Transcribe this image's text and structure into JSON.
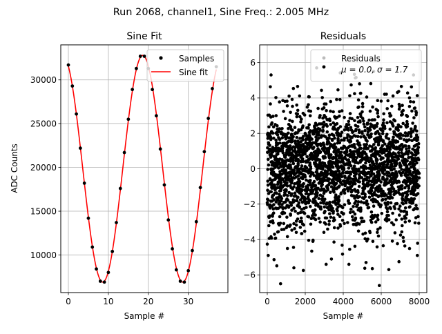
{
  "suptitle": "Run 2068, channel1, Sine Freq.: 2.005 MHz",
  "chart_data": [
    {
      "type": "scatter+line",
      "title": "Sine Fit",
      "xlabel": "Sample #",
      "ylabel": "ADC Counts",
      "xlim": [
        -1.9,
        39.9
      ],
      "ylim": [
        5700,
        34000
      ],
      "xticks": [
        0,
        10,
        20,
        30
      ],
      "yticks": [
        10000,
        15000,
        20000,
        25000,
        30000
      ],
      "grid": true,
      "legend": "upper right",
      "legend_entries": [
        "Samples",
        "Sine fit"
      ],
      "series": [
        {
          "name": "Samples",
          "marker": "dot",
          "color": "#000000",
          "x": [
            0,
            1,
            2,
            3,
            4,
            5,
            6,
            7,
            8,
            9,
            10,
            11,
            12,
            13,
            14,
            15,
            16,
            17,
            18,
            19,
            20,
            21,
            22,
            23,
            24,
            25,
            26,
            27,
            28,
            29,
            30,
            31,
            32,
            33,
            34,
            35,
            36,
            37
          ],
          "y": [
            31700,
            29300,
            26100,
            22200,
            18200,
            14200,
            10900,
            8400,
            7000,
            6900,
            8000,
            10400,
            13700,
            17600,
            21700,
            25500,
            28900,
            31300,
            32700,
            32700,
            31300,
            28900,
            25900,
            22100,
            18000,
            14000,
            10700,
            8300,
            7000,
            6900,
            8200,
            10500,
            13800,
            17700,
            21800,
            25600,
            29000,
            31500
          ]
        },
        {
          "name": "Sine fit",
          "marker": "line",
          "color": "#ff0000",
          "model": {
            "offset": 19850,
            "amplitude": 12950,
            "period": 20.0,
            "phase_x0": 18.6,
            "x_start": 0,
            "x_end": 37
          }
        }
      ]
    },
    {
      "type": "scatter",
      "title": "Residuals",
      "xlabel": "Sample #",
      "ylabel": "",
      "xlim": [
        -400,
        8400
      ],
      "ylim": [
        -7,
        7
      ],
      "xticks": [
        0,
        2000,
        4000,
        6000,
        8000
      ],
      "yticks": [
        -6,
        -4,
        -2,
        0,
        2,
        4,
        6
      ],
      "grid": true,
      "legend": "upper right",
      "legend_entries": [
        "Residuals",
        "μ = 0.0, σ = 1.7"
      ],
      "series": [
        {
          "name": "Residuals",
          "color": "#000000",
          "x_range": [
            0,
            8000
          ],
          "n_points": 8000,
          "mean": 0.0,
          "std": 1.7,
          "notable_points": [
            {
              "x": 700,
              "y": -6.5
            },
            {
              "x": 5900,
              "y": -6.6
            },
            {
              "x": 2600,
              "y": 5.7
            },
            {
              "x": 5600,
              "y": 5.5
            },
            {
              "x": 7700,
              "y": 5.3
            },
            {
              "x": 200,
              "y": 5.3
            },
            {
              "x": 1400,
              "y": -5.6
            },
            {
              "x": 3100,
              "y": -5.4
            },
            {
              "x": 4300,
              "y": -5.4
            },
            {
              "x": 5200,
              "y": -5.3
            },
            {
              "x": 6400,
              "y": -5.7
            },
            {
              "x": 7900,
              "y": -4.9
            },
            {
              "x": 50,
              "y": -4.9
            }
          ]
        }
      ]
    }
  ]
}
